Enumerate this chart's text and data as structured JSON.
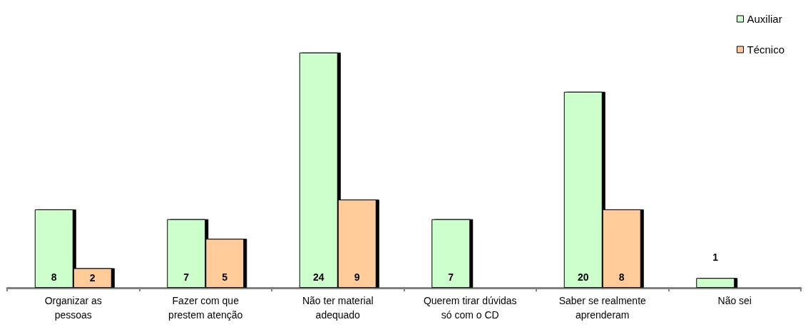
{
  "chart_data": {
    "type": "bar",
    "categories": [
      "Organizar as\npessoas",
      "Fazer com que\nprestem atenção",
      "Não ter material\nadequado",
      "Querem tirar dúvidas\nsó com o CD",
      "Saber se realmente\naprenderam",
      "Não sei"
    ],
    "series": [
      {
        "name": "Auxiliar",
        "color": "#ccffcc",
        "values": [
          8,
          7,
          24,
          7,
          20,
          1
        ]
      },
      {
        "name": "Técnico",
        "color": "#ffcc99",
        "values": [
          2,
          5,
          9,
          null,
          8,
          null
        ]
      }
    ],
    "data_labels": true,
    "legend": "top right",
    "grid": false
  }
}
